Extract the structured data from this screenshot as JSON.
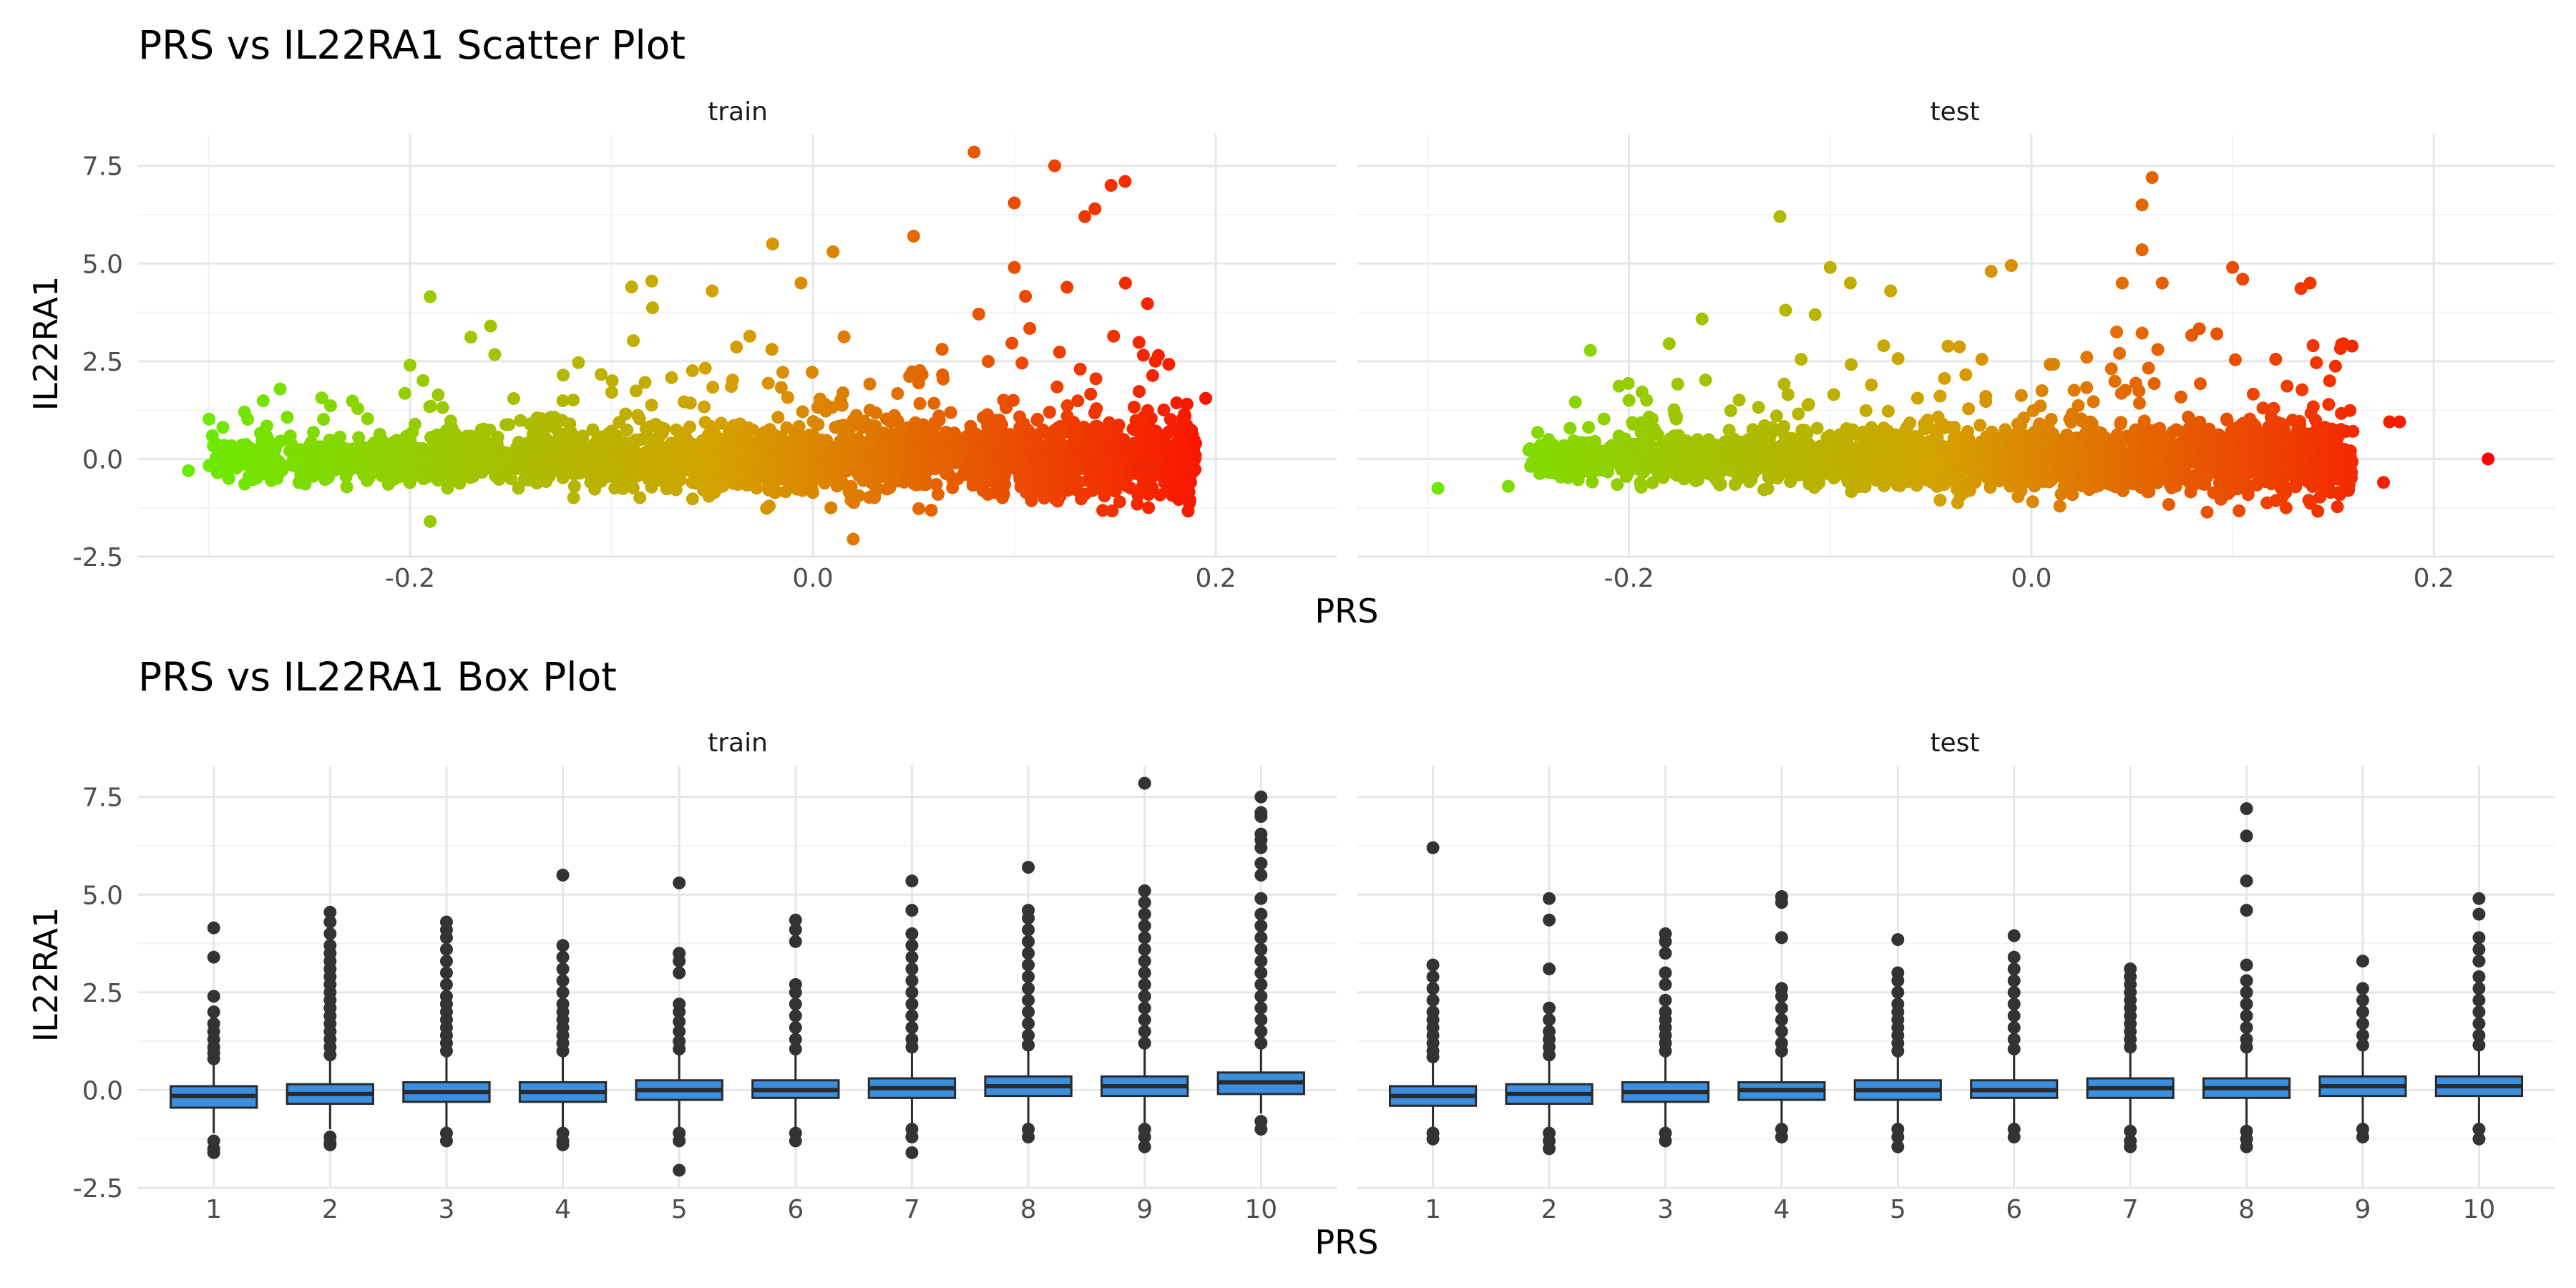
{
  "chart_data": [
    {
      "type": "scatter",
      "title": "PRS vs IL22RA1 Scatter Plot",
      "xlabel": "PRS",
      "ylabel": "IL22RA1",
      "facets": [
        "train",
        "test"
      ],
      "xlim": [
        -0.335,
        0.26
      ],
      "ylim": [
        -2.5,
        8.3
      ],
      "xticks": [
        -0.2,
        0.0,
        0.2
      ],
      "xtick_labels": [
        "-0.2",
        "0.0",
        "0.2"
      ],
      "yticks": [
        -2.5,
        0.0,
        2.5,
        5.0,
        7.5
      ],
      "ytick_labels": [
        "-2.5",
        "0.0",
        "2.5",
        "5.0",
        "7.5"
      ],
      "grid": true,
      "color_scale": {
        "low": "#66ee00",
        "mid": "#d4a000",
        "high": "#ff0000",
        "encodes": "PRS"
      },
      "series": [
        {
          "facet": "train",
          "highlighted_points": [
            {
              "x": -0.31,
              "y": -0.3
            },
            {
              "x": -0.29,
              "y": -0.5
            },
            {
              "x": -0.28,
              "y": 0.3
            },
            {
              "x": -0.2,
              "y": 2.4
            },
            {
              "x": -0.19,
              "y": 4.15
            },
            {
              "x": -0.19,
              "y": -1.6
            },
            {
              "x": -0.16,
              "y": 3.4
            },
            {
              "x": -0.09,
              "y": 4.4
            },
            {
              "x": -0.08,
              "y": 4.55
            },
            {
              "x": -0.05,
              "y": 4.3
            },
            {
              "x": -0.02,
              "y": 5.5
            },
            {
              "x": 0.01,
              "y": 5.3
            },
            {
              "x": 0.02,
              "y": -2.05
            },
            {
              "x": 0.05,
              "y": 5.7
            },
            {
              "x": 0.08,
              "y": 7.85
            },
            {
              "x": 0.1,
              "y": 4.9
            },
            {
              "x": 0.1,
              "y": 6.55
            },
            {
              "x": 0.12,
              "y": 7.5
            },
            {
              "x": 0.135,
              "y": 6.2
            },
            {
              "x": 0.14,
              "y": 6.4
            },
            {
              "x": 0.148,
              "y": 7.0
            },
            {
              "x": 0.155,
              "y": 7.1
            },
            {
              "x": 0.17,
              "y": 2.5
            },
            {
              "x": 0.195,
              "y": 1.55
            },
            {
              "x": 0.19,
              "y": 0.4
            }
          ],
          "cloud": {
            "x_range": [
              -0.3,
              0.19
            ],
            "center_y": 0.0,
            "spread": 0.5
          }
        },
        {
          "facet": "test",
          "highlighted_points": [
            {
              "x": -0.295,
              "y": -0.75
            },
            {
              "x": -0.26,
              "y": -0.7
            },
            {
              "x": -0.24,
              "y": 0.5
            },
            {
              "x": -0.2,
              "y": 1.5
            },
            {
              "x": -0.18,
              "y": 2.95
            },
            {
              "x": -0.125,
              "y": 6.2
            },
            {
              "x": -0.1,
              "y": 4.9
            },
            {
              "x": -0.09,
              "y": 4.5
            },
            {
              "x": -0.07,
              "y": 4.3
            },
            {
              "x": -0.02,
              "y": 4.8
            },
            {
              "x": -0.01,
              "y": 4.95
            },
            {
              "x": 0.055,
              "y": 6.5
            },
            {
              "x": 0.06,
              "y": 7.2
            },
            {
              "x": 0.055,
              "y": 5.35
            },
            {
              "x": 0.1,
              "y": 4.9
            },
            {
              "x": 0.105,
              "y": 4.6
            },
            {
              "x": 0.14,
              "y": 2.9
            },
            {
              "x": 0.175,
              "y": -0.6
            },
            {
              "x": 0.178,
              "y": 0.95
            },
            {
              "x": 0.183,
              "y": 0.95
            },
            {
              "x": 0.227,
              "y": 0.0
            }
          ],
          "cloud": {
            "x_range": [
              -0.25,
              0.16
            ],
            "center_y": 0.0,
            "spread": 0.45
          }
        }
      ]
    },
    {
      "type": "box",
      "title": "PRS vs IL22RA1 Box Plot",
      "xlabel": "PRS",
      "ylabel": "IL22RA1",
      "facets": [
        "train",
        "test"
      ],
      "categories": [
        "1",
        "2",
        "3",
        "4",
        "5",
        "6",
        "7",
        "8",
        "9",
        "10"
      ],
      "ylim": [
        -2.5,
        8.3
      ],
      "yticks": [
        -2.5,
        0.0,
        2.5,
        5.0,
        7.5
      ],
      "ytick_labels": [
        "-2.5",
        "0.0",
        "2.5",
        "5.0",
        "7.5"
      ],
      "grid": true,
      "box_fill": "#3a8fe0",
      "box_line": "#2a2a2a",
      "outlier_color": "#333333",
      "series": [
        {
          "facet": "train",
          "boxes": [
            {
              "q1": -0.45,
              "median": -0.15,
              "q3": 0.1,
              "lo": -1.1,
              "hi": 0.7,
              "outliers_high": [
                0.8,
                0.95,
                1.1,
                1.3,
                1.5,
                1.7,
                2.0,
                2.4,
                3.4,
                4.15
              ],
              "outliers_low": [
                -1.3,
                -1.5,
                -1.6
              ]
            },
            {
              "q1": -0.35,
              "median": -0.1,
              "q3": 0.15,
              "lo": -1.0,
              "hi": 0.8,
              "outliers_high": [
                0.9,
                1.1,
                1.3,
                1.5,
                1.7,
                1.9,
                2.1,
                2.3,
                2.5,
                2.7,
                2.9,
                3.1,
                3.3,
                3.5,
                3.7,
                4.0,
                4.3,
                4.55
              ],
              "outliers_low": [
                -1.2,
                -1.35,
                -1.4
              ]
            },
            {
              "q1": -0.3,
              "median": -0.05,
              "q3": 0.2,
              "lo": -1.0,
              "hi": 0.9,
              "outliers_high": [
                1.0,
                1.2,
                1.4,
                1.6,
                1.8,
                2.0,
                2.2,
                2.4,
                2.7,
                3.0,
                3.3,
                3.6,
                3.9,
                4.1,
                4.3
              ],
              "outliers_low": [
                -1.1,
                -1.3
              ]
            },
            {
              "q1": -0.3,
              "median": -0.05,
              "q3": 0.2,
              "lo": -1.0,
              "hi": 0.9,
              "outliers_high": [
                1.0,
                1.2,
                1.4,
                1.6,
                1.8,
                2.0,
                2.2,
                2.5,
                2.8,
                3.1,
                3.4,
                3.7,
                5.5
              ],
              "outliers_low": [
                -1.1,
                -1.3,
                -1.4
              ]
            },
            {
              "q1": -0.25,
              "median": 0.0,
              "q3": 0.25,
              "lo": -0.95,
              "hi": 0.95,
              "outliers_high": [
                1.05,
                1.25,
                1.5,
                1.75,
                2.0,
                2.2,
                3.0,
                3.3,
                3.5,
                5.3
              ],
              "outliers_low": [
                -1.1,
                -1.3,
                -2.05
              ]
            },
            {
              "q1": -0.2,
              "median": 0.0,
              "q3": 0.25,
              "lo": -0.95,
              "hi": 0.95,
              "outliers_high": [
                1.05,
                1.3,
                1.6,
                1.9,
                2.2,
                2.5,
                2.7,
                3.8,
                4.1,
                4.35
              ],
              "outliers_low": [
                -1.1,
                -1.3
              ]
            },
            {
              "q1": -0.2,
              "median": 0.05,
              "q3": 0.3,
              "lo": -0.95,
              "hi": 1.0,
              "outliers_high": [
                1.1,
                1.3,
                1.6,
                1.9,
                2.2,
                2.5,
                2.8,
                3.1,
                3.4,
                3.7,
                4.0,
                4.6,
                5.35
              ],
              "outliers_low": [
                -1.0,
                -1.2,
                -1.6
              ]
            },
            {
              "q1": -0.15,
              "median": 0.1,
              "q3": 0.35,
              "lo": -0.9,
              "hi": 1.05,
              "outliers_high": [
                1.15,
                1.4,
                1.7,
                2.0,
                2.3,
                2.6,
                2.9,
                3.2,
                3.5,
                3.8,
                4.1,
                4.4,
                4.6,
                5.7
              ],
              "outliers_low": [
                -1.0,
                -1.2
              ]
            },
            {
              "q1": -0.15,
              "median": 0.1,
              "q3": 0.35,
              "lo": -0.9,
              "hi": 1.1,
              "outliers_high": [
                1.2,
                1.5,
                1.8,
                2.1,
                2.4,
                2.7,
                3.0,
                3.3,
                3.6,
                3.9,
                4.2,
                4.5,
                4.8,
                5.1,
                7.85
              ],
              "outliers_low": [
                -1.0,
                -1.2,
                -1.45
              ]
            },
            {
              "q1": -0.1,
              "median": 0.2,
              "q3": 0.45,
              "lo": -0.6,
              "hi": 1.1,
              "outliers_high": [
                1.2,
                1.5,
                1.8,
                2.1,
                2.4,
                2.7,
                3.0,
                3.3,
                3.6,
                3.9,
                4.2,
                4.5,
                4.9,
                5.5,
                5.8,
                6.2,
                6.4,
                6.55,
                7.0,
                7.1,
                7.5
              ],
              "outliers_low": [
                -0.8,
                -1.0
              ]
            }
          ]
        },
        {
          "facet": "test",
          "boxes": [
            {
              "q1": -0.4,
              "median": -0.15,
              "q3": 0.1,
              "lo": -1.0,
              "hi": 0.75,
              "outliers_high": [
                0.85,
                1.0,
                1.2,
                1.4,
                1.6,
                1.8,
                2.0,
                2.3,
                2.6,
                2.9,
                3.2,
                6.2
              ],
              "outliers_low": [
                -1.1,
                -1.25
              ]
            },
            {
              "q1": -0.35,
              "median": -0.1,
              "q3": 0.15,
              "lo": -1.0,
              "hi": 0.8,
              "outliers_high": [
                0.9,
                1.1,
                1.3,
                1.5,
                1.8,
                2.1,
                3.1,
                4.35,
                4.9
              ],
              "outliers_low": [
                -1.1,
                -1.3,
                -1.5
              ]
            },
            {
              "q1": -0.3,
              "median": -0.05,
              "q3": 0.2,
              "lo": -1.0,
              "hi": 0.9,
              "outliers_high": [
                1.0,
                1.2,
                1.4,
                1.6,
                1.8,
                2.0,
                2.3,
                2.7,
                3.0,
                3.5,
                3.8,
                4.0
              ],
              "outliers_low": [
                -1.1,
                -1.3
              ]
            },
            {
              "q1": -0.25,
              "median": 0.0,
              "q3": 0.2,
              "lo": -0.95,
              "hi": 0.9,
              "outliers_high": [
                1.0,
                1.2,
                1.5,
                1.8,
                2.1,
                2.4,
                2.6,
                3.9,
                4.8,
                4.95
              ],
              "outliers_low": [
                -1.0,
                -1.2
              ]
            },
            {
              "q1": -0.25,
              "median": 0.0,
              "q3": 0.25,
              "lo": -0.95,
              "hi": 0.9,
              "outliers_high": [
                1.0,
                1.2,
                1.4,
                1.6,
                1.8,
                2.0,
                2.2,
                2.5,
                2.8,
                3.0,
                3.85
              ],
              "outliers_low": [
                -1.0,
                -1.2,
                -1.45
              ]
            },
            {
              "q1": -0.2,
              "median": 0.0,
              "q3": 0.25,
              "lo": -0.95,
              "hi": 0.95,
              "outliers_high": [
                1.05,
                1.3,
                1.6,
                1.9,
                2.2,
                2.5,
                2.8,
                3.1,
                3.4,
                3.95
              ],
              "outliers_low": [
                -1.0,
                -1.2
              ]
            },
            {
              "q1": -0.2,
              "median": 0.05,
              "q3": 0.3,
              "lo": -0.95,
              "hi": 1.0,
              "outliers_high": [
                1.1,
                1.3,
                1.5,
                1.7,
                1.9,
                2.1,
                2.3,
                2.5,
                2.7,
                2.9,
                3.1
              ],
              "outliers_low": [
                -1.05,
                -1.3,
                -1.45
              ]
            },
            {
              "q1": -0.2,
              "median": 0.05,
              "q3": 0.3,
              "lo": -0.95,
              "hi": 1.0,
              "outliers_high": [
                1.1,
                1.3,
                1.6,
                1.9,
                2.2,
                2.5,
                2.8,
                3.2,
                4.6,
                5.35,
                6.5,
                7.2
              ],
              "outliers_low": [
                -1.05,
                -1.25,
                -1.45
              ]
            },
            {
              "q1": -0.15,
              "median": 0.1,
              "q3": 0.35,
              "lo": -0.9,
              "hi": 1.05,
              "outliers_high": [
                1.15,
                1.4,
                1.7,
                2.0,
                2.3,
                2.6,
                3.3
              ],
              "outliers_low": [
                -1.0,
                -1.2
              ]
            },
            {
              "q1": -0.15,
              "median": 0.1,
              "q3": 0.35,
              "lo": -0.9,
              "hi": 1.05,
              "outliers_high": [
                1.15,
                1.4,
                1.7,
                2.0,
                2.3,
                2.6,
                2.9,
                3.3,
                3.6,
                3.9,
                4.5,
                4.9
              ],
              "outliers_low": [
                -1.0,
                -1.25
              ]
            }
          ]
        }
      ]
    }
  ]
}
